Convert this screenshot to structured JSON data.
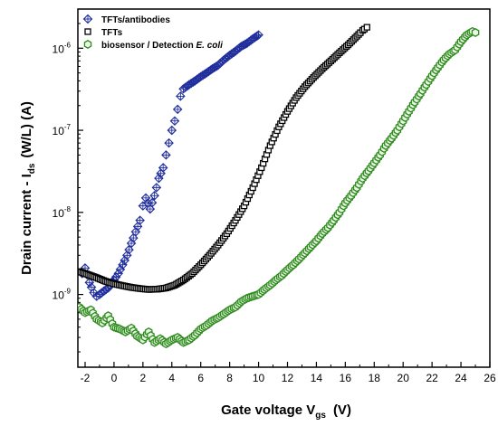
{
  "chart_data": {
    "type": "scatter",
    "xlabel": "Gate voltage V",
    "xlabel_sub": "gs",
    "xlabel_unit": "(V)",
    "ylabel": "Drain current - I",
    "ylabel_sub": "ds",
    "ylabel_unit": "(W/L) (A)",
    "xlim": [
      -2.5,
      26
    ],
    "ylim": [
      1.3e-10,
      3e-06
    ],
    "yscale": "log",
    "grid": false,
    "legend_position": "top-left",
    "x_ticks": [
      -2,
      0,
      2,
      4,
      6,
      8,
      10,
      12,
      14,
      16,
      18,
      20,
      22,
      24,
      26
    ],
    "x_tick_labels": [
      "-2",
      "0",
      "2",
      "4",
      "6",
      "8",
      "10",
      "12",
      "14",
      "16",
      "18",
      "20",
      "22",
      "24",
      "26"
    ],
    "y_ticks": [
      1e-09,
      1e-08,
      1e-07,
      1e-06
    ],
    "y_tick_labels": [
      {
        "base": "10",
        "exp": "-9"
      },
      {
        "base": "10",
        "exp": "-8"
      },
      {
        "base": "10",
        "exp": "-7"
      },
      {
        "base": "10",
        "exp": "-6"
      }
    ],
    "series": [
      {
        "name": "TFTs/antibodies",
        "color": "#1f2d9c",
        "marker": "crossed-diamond",
        "x": [
          -2.2,
          -2.0,
          -1.7,
          -1.4,
          -1.2,
          -1.0,
          -0.7,
          -0.4,
          0.0,
          0.3,
          0.6,
          0.9,
          1.2,
          1.5,
          1.8,
          2.0,
          2.2,
          2.5,
          2.8,
          3.1,
          3.4,
          3.6,
          3.8,
          4.0,
          4.2,
          4.4,
          4.6,
          4.8,
          5.2,
          5.6,
          6.0,
          6.4,
          6.8,
          7.2,
          7.6,
          8.0,
          8.4,
          8.8,
          9.2,
          9.6,
          10.0
        ],
        "y": [
          1.8e-09,
          2.1e-09,
          1.4e-09,
          1.05e-09,
          9.5e-10,
          1e-09,
          1.1e-09,
          1.2e-09,
          1.5e-09,
          1.8e-09,
          2.3e-09,
          3e-09,
          4.2e-09,
          5.8e-09,
          8e-09,
          1.2e-08,
          1.5e-08,
          1.1e-08,
          1.6e-08,
          2.6e-08,
          3.5e-08,
          5e-08,
          7e-08,
          1e-07,
          1.3e-07,
          1.8e-07,
          2.6e-07,
          3.2e-07,
          3.6e-07,
          4e-07,
          4.5e-07,
          5e-07,
          5.6e-07,
          6.2e-07,
          7.2e-07,
          8.2e-07,
          9.2e-07,
          1.05e-06,
          1.15e-06,
          1.3e-06,
          1.45e-06
        ]
      },
      {
        "name": "TFTs",
        "color": "#000000",
        "marker": "open-square",
        "x": [
          -2.4,
          -1.8,
          -1.2,
          -0.6,
          0.0,
          0.6,
          1.2,
          1.8,
          2.4,
          3.0,
          3.6,
          4.2,
          4.8,
          5.4,
          6.0,
          6.6,
          7.2,
          7.8,
          8.4,
          9.0,
          9.6,
          10.2,
          10.8,
          11.4,
          12.0,
          12.6,
          13.2,
          13.8,
          14.4,
          15.0,
          15.6,
          16.2,
          16.8,
          17.2,
          17.5
        ],
        "y": [
          1.9e-09,
          1.75e-09,
          1.6e-09,
          1.45e-09,
          1.35e-09,
          1.28e-09,
          1.22e-09,
          1.18e-09,
          1.15e-09,
          1.16e-09,
          1.2e-09,
          1.3e-09,
          1.5e-09,
          1.8e-09,
          2.3e-09,
          3e-09,
          4e-09,
          5.5e-09,
          8e-09,
          1.2e-08,
          2e-08,
          3.5e-08,
          6.5e-08,
          1.1e-07,
          1.7e-07,
          2.5e-07,
          3.4e-07,
          4.4e-07,
          5.6e-07,
          7e-07,
          8.8e-07,
          1.1e-06,
          1.4e-06,
          1.65e-06,
          1.8e-06
        ]
      },
      {
        "name": "biosensor / Detection E. coli",
        "color": "#2e8b1e",
        "marker": "open-hexagon",
        "x": [
          -2.4,
          -2.0,
          -1.6,
          -1.2,
          -0.8,
          -0.4,
          0.0,
          0.4,
          0.8,
          1.2,
          1.6,
          2.0,
          2.4,
          2.8,
          3.2,
          3.6,
          4.0,
          4.4,
          4.8,
          5.2,
          5.6,
          6.0,
          6.4,
          6.8,
          7.2,
          7.6,
          8.0,
          8.4,
          8.8,
          9.2,
          9.6,
          10.0,
          10.4,
          10.8,
          11.2,
          11.6,
          12.0,
          12.4,
          12.8,
          13.2,
          13.6,
          14.0,
          14.4,
          14.8,
          15.2,
          15.6,
          16.0,
          16.4,
          16.8,
          17.2,
          17.6,
          18.0,
          18.4,
          18.8,
          19.2,
          19.6,
          20.0,
          20.4,
          20.8,
          21.2,
          21.6,
          22.0,
          22.4,
          22.8,
          23.2,
          23.6,
          24.0,
          24.4,
          24.8,
          25.0
        ],
        "y": [
          7e-10,
          6e-10,
          6.5e-10,
          5e-10,
          4.5e-10,
          5.5e-10,
          4e-10,
          3.8e-10,
          3.5e-10,
          3.9e-10,
          3.1e-10,
          2.8e-10,
          3.5e-10,
          2.6e-10,
          2.9e-10,
          2.5e-10,
          2.8e-10,
          3e-10,
          2.6e-10,
          2.8e-10,
          3.2e-10,
          3.8e-10,
          4.2e-10,
          4.8e-10,
          5.2e-10,
          5.8e-10,
          6.5e-10,
          7e-10,
          8.2e-10,
          9e-10,
          9.5e-10,
          1e-09,
          1.15e-09,
          1.3e-09,
          1.5e-09,
          1.7e-09,
          2e-09,
          2.3e-09,
          2.7e-09,
          3.2e-09,
          3.8e-09,
          4.5e-09,
          5.5e-09,
          6.5e-09,
          8e-09,
          1e-08,
          1.3e-08,
          1.6e-08,
          2e-08,
          2.6e-08,
          3.2e-08,
          4e-08,
          5e-08,
          6.5e-08,
          8e-08,
          1e-07,
          1.3e-07,
          1.7e-07,
          2.2e-07,
          2.8e-07,
          3.6e-07,
          4.6e-07,
          5.8e-07,
          7.2e-07,
          8.5e-07,
          9.5e-07,
          1.2e-06,
          1.45e-06,
          1.6e-06,
          1.55e-06
        ]
      }
    ]
  }
}
